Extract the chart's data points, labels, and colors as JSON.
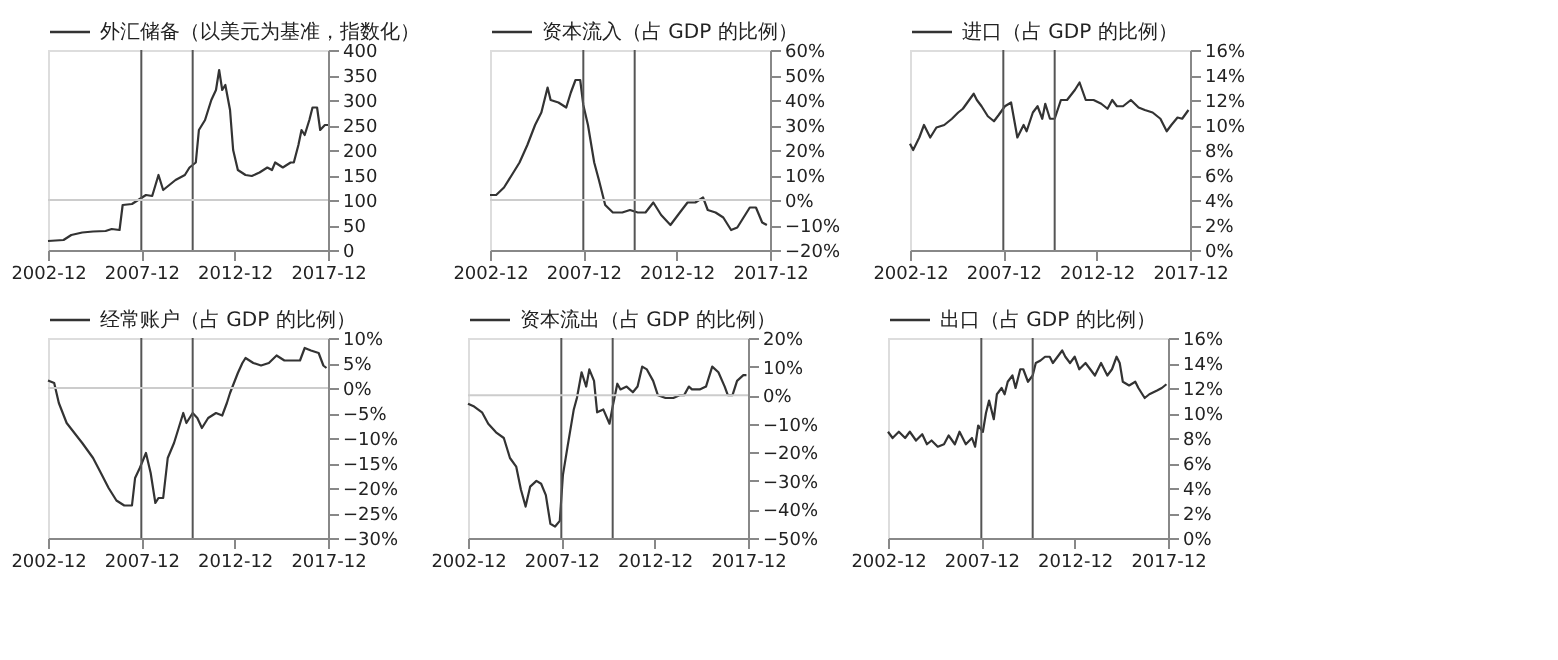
{
  "chart_data": [
    {
      "type": "line",
      "legend": "top",
      "grid": false,
      "xlim": [
        "2002-12",
        "2017-12"
      ],
      "xticks": [
        "2002-12",
        "2007-12",
        "2012-12",
        "2017-12"
      ],
      "ylim": [
        0,
        400
      ],
      "yticks": [
        0,
        50,
        100,
        150,
        200,
        250,
        300,
        350,
        400
      ],
      "ref_lines": [
        {
          "axis": "x",
          "value": "2007-12",
          "color": "#555555"
        },
        {
          "axis": "x",
          "value": "2010-09",
          "color": "#555555"
        },
        {
          "axis": "y",
          "value": 100,
          "color": "#cccccc"
        }
      ],
      "series": [
        {
          "name": "外汇储备（以美元为基准，指数化）",
          "color": "#333333",
          "x": [
            "2002-12",
            "2003-10",
            "2004-03",
            "2004-10",
            "2005-05",
            "2006-01",
            "2006-05",
            "2006-10",
            "2006-12",
            "2007-06",
            "2007-10",
            "2008-03",
            "2008-07",
            "2008-11",
            "2009-02",
            "2009-06",
            "2009-10",
            "2010-04",
            "2010-07",
            "2010-11",
            "2011-01",
            "2011-05",
            "2011-09",
            "2011-12",
            "2012-02",
            "2012-04",
            "2012-06",
            "2012-09",
            "2012-11",
            "2013-02",
            "2013-07",
            "2013-11",
            "2014-04",
            "2014-09",
            "2014-12",
            "2015-02",
            "2015-07",
            "2015-12",
            "2016-02",
            "2016-05",
            "2016-07",
            "2016-09",
            "2016-12",
            "2017-02",
            "2017-05",
            "2017-07",
            "2017-10",
            "2017-12"
          ],
          "values": [
            18,
            20,
            30,
            35,
            37,
            38,
            42,
            40,
            90,
            92,
            100,
            110,
            108,
            150,
            120,
            130,
            140,
            150,
            165,
            175,
            240,
            260,
            300,
            320,
            360,
            320,
            330,
            280,
            200,
            160,
            150,
            148,
            155,
            165,
            160,
            175,
            165,
            175,
            175,
            210,
            240,
            230,
            260,
            285,
            285,
            240,
            250,
            250
          ]
        }
      ]
    },
    {
      "type": "line",
      "legend": "top",
      "grid": false,
      "xlim": [
        "2002-12",
        "2017-12"
      ],
      "xticks": [
        "2002-12",
        "2007-12",
        "2012-12",
        "2017-12"
      ],
      "ylim": [
        -20,
        60
      ],
      "yticks": [
        {
          "value": 60,
          "label": "60%"
        },
        {
          "value": 50,
          "label": "50%"
        },
        {
          "value": 40,
          "label": "40%"
        },
        {
          "value": 30,
          "label": "30%"
        },
        {
          "value": 20,
          "label": "20%"
        },
        {
          "value": 10,
          "label": "10%"
        },
        {
          "value": 0,
          "label": "0%"
        },
        {
          "value": -10,
          "label": "−10%"
        },
        {
          "value": -20,
          "label": "−20%"
        }
      ],
      "ref_lines": [
        {
          "axis": "x",
          "value": "2007-12",
          "color": "#555555"
        },
        {
          "axis": "x",
          "value": "2010-09",
          "color": "#555555"
        },
        {
          "axis": "y",
          "value": 0,
          "color": "#cccccc"
        }
      ],
      "series": [
        {
          "name": "资本流入（占 GDP 的比例）",
          "color": "#333333",
          "x": [
            "2002-12",
            "2003-04",
            "2003-09",
            "2004-02",
            "2004-07",
            "2004-12",
            "2005-05",
            "2005-09",
            "2006-01",
            "2006-03",
            "2006-08",
            "2007-01",
            "2007-04",
            "2007-07",
            "2007-10",
            "2007-12",
            "2008-03",
            "2008-07",
            "2008-10",
            "2009-02",
            "2009-07",
            "2010-01",
            "2010-06",
            "2010-11",
            "2011-04",
            "2011-09",
            "2012-02",
            "2012-08",
            "2013-02",
            "2013-07",
            "2013-12",
            "2014-05",
            "2014-08",
            "2015-01",
            "2015-06",
            "2015-11",
            "2016-03",
            "2016-06",
            "2016-11",
            "2017-03",
            "2017-07",
            "2017-10"
          ],
          "values": [
            2,
            2,
            5,
            10,
            15,
            22,
            30,
            35,
            45,
            40,
            39,
            37,
            43,
            48,
            48,
            38,
            30,
            15,
            8,
            -2,
            -5,
            -5,
            -4,
            -5,
            -5,
            -1,
            -6,
            -10,
            -5,
            -1,
            -1,
            1,
            -4,
            -5,
            -7,
            -12,
            -11,
            -8,
            -3,
            -3,
            -9,
            -10
          ]
        }
      ]
    },
    {
      "type": "line",
      "legend": "top",
      "grid": false,
      "xlim": [
        "2002-12",
        "2017-12"
      ],
      "xticks": [
        "2002-12",
        "2007-12",
        "2012-12",
        "2017-12"
      ],
      "ylim": [
        0,
        16
      ],
      "yticks": [
        {
          "value": 16,
          "label": "16%"
        },
        {
          "value": 14,
          "label": "14%"
        },
        {
          "value": 12,
          "label": "12%"
        },
        {
          "value": 10,
          "label": "10%"
        },
        {
          "value": 8,
          "label": "8%"
        },
        {
          "value": 6,
          "label": "6%"
        },
        {
          "value": 4,
          "label": "4%"
        },
        {
          "value": 2,
          "label": "2%"
        },
        {
          "value": 0,
          "label": "0%"
        }
      ],
      "ref_lines": [
        {
          "axis": "x",
          "value": "2007-12",
          "color": "#555555"
        },
        {
          "axis": "x",
          "value": "2010-09",
          "color": "#555555"
        }
      ],
      "series": [
        {
          "name": "进口（占 GDP 的比例）",
          "color": "#333333",
          "x": [
            "2002-12",
            "2003-02",
            "2003-06",
            "2003-09",
            "2004-01",
            "2004-05",
            "2004-10",
            "2005-03",
            "2005-07",
            "2005-10",
            "2006-02",
            "2006-05",
            "2006-07",
            "2006-10",
            "2007-02",
            "2007-06",
            "2007-09",
            "2008-01",
            "2008-05",
            "2008-09",
            "2009-01",
            "2009-03",
            "2009-07",
            "2009-10",
            "2010-01",
            "2010-03",
            "2010-06",
            "2010-09",
            "2011-01",
            "2011-05",
            "2011-10",
            "2012-01",
            "2012-05",
            "2012-10",
            "2013-03",
            "2013-07",
            "2013-10",
            "2014-01",
            "2014-05",
            "2014-10",
            "2015-03",
            "2015-07",
            "2015-12",
            "2016-05",
            "2016-09",
            "2016-12",
            "2017-04",
            "2017-07",
            "2017-11"
          ],
          "values": [
            8.5,
            8,
            9,
            10,
            9,
            9.8,
            10,
            10.5,
            11,
            11.3,
            12,
            12.5,
            12,
            11.5,
            10.7,
            10.3,
            10.8,
            11.5,
            11.8,
            9,
            10,
            9.5,
            11,
            11.5,
            10.5,
            11.7,
            10.5,
            10.5,
            12,
            12,
            12.8,
            13.4,
            12,
            12,
            11.7,
            11.3,
            12,
            11.5,
            11.5,
            12,
            11.4,
            11.2,
            11,
            10.5,
            9.5,
            10,
            10.6,
            10.5,
            11.2
          ]
        }
      ]
    },
    {
      "type": "line",
      "legend": "top",
      "grid": false,
      "xlim": [
        "2002-12",
        "2017-12"
      ],
      "xticks": [
        "2002-12",
        "2007-12",
        "2012-12",
        "2017-12"
      ],
      "ylim": [
        -30,
        10
      ],
      "yticks": [
        {
          "value": 10,
          "label": "10%"
        },
        {
          "value": 5,
          "label": "5%"
        },
        {
          "value": 0,
          "label": "0%"
        },
        {
          "value": -5,
          "label": "−5%"
        },
        {
          "value": -10,
          "label": "−10%"
        },
        {
          "value": -15,
          "label": "−15%"
        },
        {
          "value": -20,
          "label": "−20%"
        },
        {
          "value": -25,
          "label": "−25%"
        },
        {
          "value": -30,
          "label": "−30%"
        }
      ],
      "ref_lines": [
        {
          "axis": "x",
          "value": "2007-12",
          "color": "#555555"
        },
        {
          "axis": "x",
          "value": "2010-09",
          "color": "#555555"
        },
        {
          "axis": "y",
          "value": 0,
          "color": "#cccccc"
        }
      ],
      "series": [
        {
          "name": "经常账户（占 GDP 的比例）",
          "color": "#333333",
          "x": [
            "2002-12",
            "2003-04",
            "2003-07",
            "2003-12",
            "2004-05",
            "2004-10",
            "2005-05",
            "2005-10",
            "2006-03",
            "2006-08",
            "2007-01",
            "2007-06",
            "2007-08",
            "2007-11",
            "2008-03",
            "2008-06",
            "2008-09",
            "2008-11",
            "2009-02",
            "2009-05",
            "2009-09",
            "2009-12",
            "2010-03",
            "2010-05",
            "2010-09",
            "2010-12",
            "2011-03",
            "2011-07",
            "2011-12",
            "2012-04",
            "2012-07",
            "2012-09",
            "2013-02",
            "2013-05",
            "2013-07",
            "2013-12",
            "2014-05",
            "2014-10",
            "2015-03",
            "2015-08",
            "2016-01",
            "2016-06",
            "2016-09",
            "2017-01",
            "2017-06",
            "2017-09",
            "2017-11"
          ],
          "values": [
            1.5,
            1,
            -3,
            -7,
            -9,
            -11,
            -14,
            -17,
            -20,
            -22.5,
            -23.5,
            -23.5,
            -18,
            -16,
            -13,
            -17,
            -23,
            -22,
            -22,
            -14,
            -11,
            -8,
            -5,
            -7,
            -5,
            -6,
            -8,
            -6,
            -5,
            -5.5,
            -3,
            -1,
            3,
            5,
            6,
            5,
            4.5,
            5,
            6.5,
            5.5,
            5.5,
            5.5,
            8,
            7.5,
            7,
            4.5,
            4
          ]
        }
      ]
    },
    {
      "type": "line",
      "legend": "top",
      "grid": false,
      "xlim": [
        "2002-12",
        "2017-12"
      ],
      "xticks": [
        "2002-12",
        "2007-12",
        "2012-12",
        "2017-12"
      ],
      "ylim": [
        -50,
        20
      ],
      "yticks": [
        {
          "value": 20,
          "label": "20%"
        },
        {
          "value": 10,
          "label": "10%"
        },
        {
          "value": 0,
          "label": "0%"
        },
        {
          "value": -10,
          "label": "−10%"
        },
        {
          "value": -20,
          "label": "−20%"
        },
        {
          "value": -30,
          "label": "−30%"
        },
        {
          "value": -40,
          "label": "−40%"
        },
        {
          "value": -50,
          "label": "−50%"
        }
      ],
      "ref_lines": [
        {
          "axis": "x",
          "value": "2007-12",
          "color": "#555555"
        },
        {
          "axis": "x",
          "value": "2010-09",
          "color": "#555555"
        },
        {
          "axis": "y",
          "value": 0,
          "color": "#cccccc"
        }
      ],
      "series": [
        {
          "name": "资本流出（占 GDP 的比例）",
          "color": "#333333",
          "x": [
            "2002-12",
            "2003-04",
            "2003-09",
            "2004-01",
            "2004-06",
            "2004-11",
            "2005-03",
            "2005-07",
            "2005-10",
            "2006-01",
            "2006-04",
            "2006-08",
            "2006-11",
            "2007-02",
            "2007-05",
            "2007-08",
            "2007-11",
            "2008-01",
            "2008-04",
            "2008-08",
            "2008-10",
            "2009-01",
            "2009-04",
            "2009-06",
            "2009-09",
            "2009-11",
            "2010-03",
            "2010-07",
            "2010-09",
            "2010-12",
            "2011-02",
            "2011-06",
            "2011-10",
            "2012-01",
            "2012-04",
            "2012-07",
            "2012-11",
            "2013-02",
            "2013-07",
            "2013-12",
            "2014-04",
            "2014-07",
            "2014-10",
            "2014-12",
            "2015-05",
            "2015-09",
            "2016-01",
            "2016-05",
            "2016-09",
            "2016-11",
            "2017-02",
            "2017-05",
            "2017-09",
            "2017-11"
          ],
          "values": [
            -3,
            -4,
            -6,
            -10,
            -13,
            -15,
            -22,
            -25,
            -33,
            -39,
            -32,
            -30,
            -31,
            -35,
            -45,
            -46,
            -44,
            -28,
            -18,
            -5,
            -1,
            8,
            3,
            9,
            5,
            -6,
            -5,
            -10,
            -4,
            4,
            2,
            3,
            1,
            3,
            10,
            9,
            5,
            0,
            -1,
            -1,
            0,
            0,
            3,
            2,
            2,
            3,
            10,
            8,
            3,
            0,
            0,
            5,
            7,
            7
          ]
        }
      ]
    },
    {
      "type": "line",
      "legend": "top",
      "grid": false,
      "xlim": [
        "2002-12",
        "2017-12"
      ],
      "xticks": [
        "2002-12",
        "2007-12",
        "2012-12",
        "2017-12"
      ],
      "ylim": [
        0,
        16
      ],
      "yticks": [
        {
          "value": 16,
          "label": "16%"
        },
        {
          "value": 14,
          "label": "14%"
        },
        {
          "value": 12,
          "label": "12%"
        },
        {
          "value": 10,
          "label": "10%"
        },
        {
          "value": 8,
          "label": "8%"
        },
        {
          "value": 6,
          "label": "6%"
        },
        {
          "value": 4,
          "label": "4%"
        },
        {
          "value": 2,
          "label": "2%"
        },
        {
          "value": 0,
          "label": "0%"
        }
      ],
      "ref_lines": [
        {
          "axis": "x",
          "value": "2007-12",
          "color": "#555555"
        },
        {
          "axis": "x",
          "value": "2010-09",
          "color": "#555555"
        }
      ],
      "series": [
        {
          "name": "出口（占 GDP 的比例）",
          "color": "#333333",
          "x": [
            "2002-12",
            "2003-03",
            "2003-07",
            "2003-11",
            "2004-02",
            "2004-06",
            "2004-10",
            "2005-01",
            "2005-04",
            "2005-08",
            "2005-12",
            "2006-03",
            "2006-07",
            "2006-10",
            "2007-02",
            "2007-06",
            "2007-08",
            "2007-10",
            "2008-01",
            "2008-03",
            "2008-05",
            "2008-08",
            "2008-10",
            "2009-01",
            "2009-03",
            "2009-05",
            "2009-08",
            "2009-10",
            "2010-01",
            "2010-03",
            "2010-06",
            "2010-09",
            "2010-11",
            "2011-02",
            "2011-05",
            "2011-08",
            "2011-10",
            "2012-01",
            "2012-04",
            "2012-06",
            "2012-09",
            "2012-12",
            "2013-03",
            "2013-07",
            "2013-10",
            "2014-01",
            "2014-05",
            "2014-09",
            "2014-12",
            "2015-03",
            "2015-05",
            "2015-07",
            "2015-11",
            "2016-03",
            "2016-05",
            "2016-09",
            "2016-12",
            "2017-05",
            "2017-08",
            "2017-11"
          ],
          "values": [
            8.5,
            8,
            8.5,
            8,
            8.5,
            7.8,
            8.3,
            7.5,
            7.8,
            7.3,
            7.5,
            8.2,
            7.5,
            8.5,
            7.5,
            8,
            7.3,
            9,
            8.5,
            10,
            11,
            9.5,
            11.5,
            12,
            11.5,
            12.5,
            13,
            12,
            13.5,
            13.5,
            12.5,
            13,
            14,
            14.2,
            14.5,
            14.5,
            14,
            14.5,
            15,
            14.5,
            14,
            14.5,
            13.5,
            14,
            13.5,
            13,
            14,
            13,
            13.5,
            14.5,
            14,
            12.5,
            12.2,
            12.5,
            12,
            11.2,
            11.5,
            11.8,
            12,
            12.3
          ]
        }
      ]
    }
  ]
}
